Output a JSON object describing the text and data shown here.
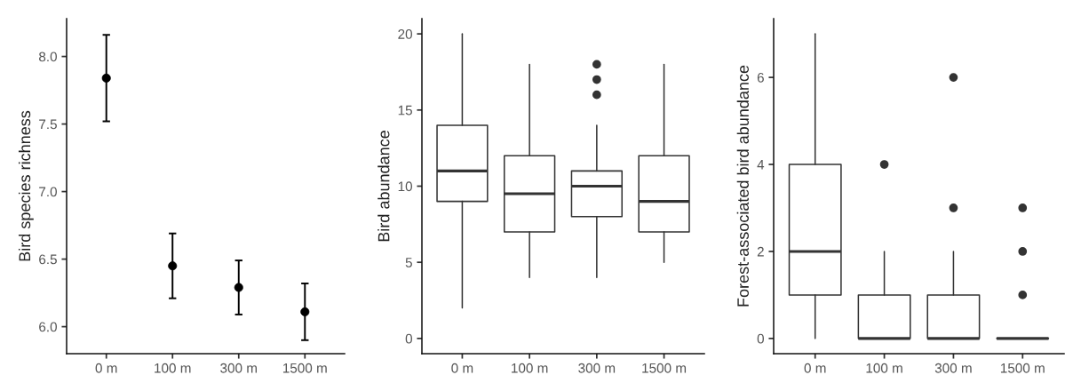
{
  "chart_data": [
    {
      "type": "scatter",
      "ylabel": "Bird species richness",
      "categories": [
        "0 m",
        "100 m",
        "300 m",
        "1500 m"
      ],
      "values": [
        7.84,
        6.45,
        6.29,
        6.11
      ],
      "errors": [
        0.32,
        0.24,
        0.2,
        0.21
      ],
      "color": "#000000",
      "marker": "circle",
      "ylim": [
        5.8,
        8.28
      ],
      "yticks": [
        {
          "value": 6,
          "label": "6.0"
        },
        6.5,
        {
          "value": 7,
          "label": "7.0"
        },
        7.5,
        {
          "value": 8,
          "label": "8.0"
        }
      ],
      "grid": false
    },
    {
      "type": "box",
      "ylabel": "Bird abundance",
      "categories": [
        "0 m",
        "100 m",
        "300 m",
        "1500 m"
      ],
      "boxes": [
        {
          "low": 2,
          "q1": 9,
          "median": 11,
          "q3": 14,
          "high": 20
        },
        {
          "low": 4,
          "q1": 7,
          "median": 9.5,
          "q3": 12,
          "high": 18
        },
        {
          "low": 4,
          "q1": 8,
          "median": 10,
          "q3": 11,
          "high": 14,
          "outliers": [
            16,
            17,
            18
          ]
        },
        {
          "low": 5,
          "q1": 7,
          "median": 9,
          "q3": 12,
          "high": 18
        }
      ],
      "ylim": [
        -1,
        21
      ],
      "yticks": [
        0,
        5,
        10,
        15,
        20
      ],
      "grid": false
    },
    {
      "type": "box",
      "ylabel": "Forest-associated bird abundance",
      "categories": [
        "0 m",
        "100 m",
        "300 m",
        "1500 m"
      ],
      "boxes": [
        {
          "low": 0,
          "q1": 1,
          "median": 2,
          "q3": 4,
          "high": 7
        },
        {
          "low": 0,
          "q1": 0,
          "median": 0,
          "q3": 1,
          "high": 2,
          "outliers": [
            4
          ]
        },
        {
          "low": 0,
          "q1": 0,
          "median": 0,
          "q3": 1,
          "high": 2,
          "outliers": [
            3,
            6
          ]
        },
        {
          "low": 0,
          "q1": 0,
          "median": 0,
          "q3": 0,
          "high": 0,
          "outliers": [
            1,
            2,
            3
          ]
        }
      ],
      "ylim": [
        -0.35,
        7.35
      ],
      "yticks": [
        0,
        2,
        4,
        6
      ],
      "grid": false
    }
  ]
}
